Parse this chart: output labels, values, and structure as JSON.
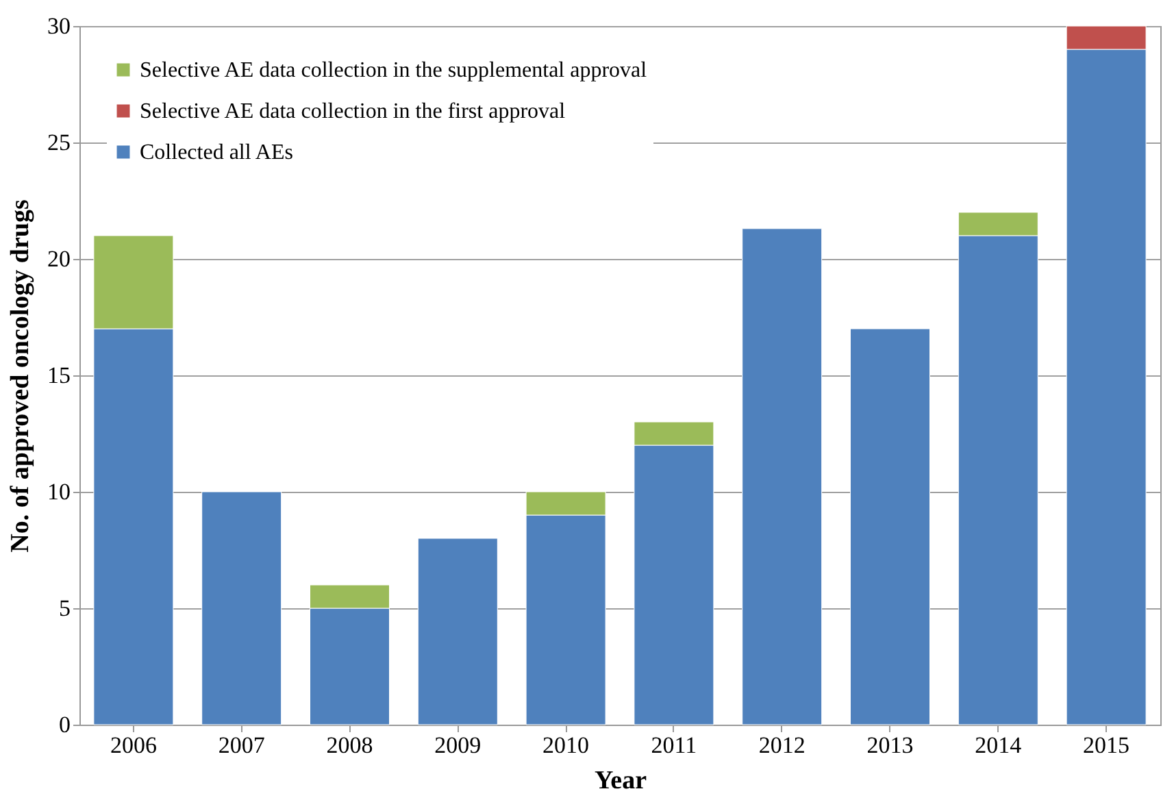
{
  "chart_data": {
    "type": "bar",
    "stacked": true,
    "xlabel": "Year",
    "ylabel": "No. of approved oncology drugs",
    "categories": [
      "2006",
      "2007",
      "2008",
      "2009",
      "2010",
      "2011",
      "2012",
      "2013",
      "2014",
      "2015"
    ],
    "series": [
      {
        "name": "Collected all AEs",
        "color": "#4f81bd",
        "values": [
          17,
          10,
          5,
          8,
          9,
          12,
          21.3,
          17,
          21,
          29
        ]
      },
      {
        "name": "Selective AE data collection in the first approval",
        "color": "#c0504d",
        "values": [
          null,
          null,
          null,
          null,
          null,
          null,
          null,
          null,
          null,
          1
        ]
      },
      {
        "name": "Selective AE data collection in the supplemental approval",
        "color": "#9bbb59",
        "values": [
          4,
          null,
          1,
          null,
          1,
          1,
          null,
          null,
          1,
          null
        ]
      }
    ],
    "ylim": [
      0,
      30
    ],
    "yticks": [
      0,
      5,
      10,
      15,
      20,
      25,
      30
    ],
    "grid": "y",
    "legend": "top left"
  }
}
